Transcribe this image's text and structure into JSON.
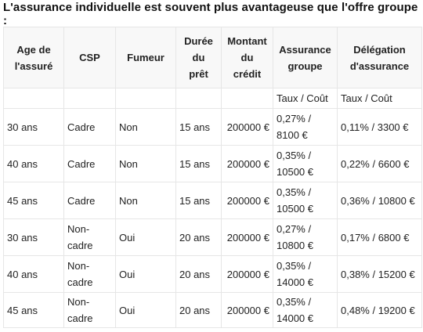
{
  "title": "L'assurance individuelle est souvent plus avantageuse que l'offre groupe :",
  "headers": [
    [
      "Age de",
      "l'assuré"
    ],
    [
      "CSP"
    ],
    [
      "Fumeur"
    ],
    [
      "Durée",
      "du",
      "prêt"
    ],
    [
      "Montant",
      "du",
      "crédit"
    ],
    [
      "Assurance",
      "groupe"
    ],
    [
      "Délégation",
      "d'assurance"
    ]
  ],
  "subheader": [
    "",
    "",
    "",
    "",
    "",
    "Taux / Coût",
    "Taux / Coût"
  ],
  "rows": [
    {
      "age": "30 ans",
      "csp": "Cadre",
      "fumeur": "Non",
      "duree": "15 ans",
      "montant": "200000 €",
      "groupe": [
        "0,27% /",
        "8100 €"
      ],
      "delegation": "0,11% / 3300 €"
    },
    {
      "age": "40 ans",
      "csp": "Cadre",
      "fumeur": "Non",
      "duree": "15 ans",
      "montant": "200000 €",
      "groupe": [
        "0,35% /",
        "10500 €"
      ],
      "delegation": "0,22% / 6600 €"
    },
    {
      "age": "45 ans",
      "csp": "Cadre",
      "fumeur": "Non",
      "duree": "15 ans",
      "montant": "200000 €",
      "groupe": [
        "0,35% /",
        "10500 €"
      ],
      "delegation": "0,36% / 10800 €"
    },
    {
      "age": "30 ans",
      "csp": "Non-cadre",
      "fumeur": "Oui",
      "duree": "20 ans",
      "montant": "200000 €",
      "groupe": [
        "0,27% /",
        "10800 €"
      ],
      "delegation": "0,17% / 6800 €"
    },
    {
      "age": "40 ans",
      "csp": "Non-cadre",
      "fumeur": "Oui",
      "duree": "20 ans",
      "montant": "200000 €",
      "groupe": [
        "0,35% /",
        "14000 €"
      ],
      "delegation": "0,38% / 15200 €"
    },
    {
      "age": "45 ans",
      "csp": "Non-cadre",
      "fumeur": "Oui",
      "duree": "20 ans",
      "montant": "200000 €",
      "groupe": [
        "0,35% /",
        "14000 €"
      ],
      "delegation": "0,48% / 19200 €"
    }
  ]
}
